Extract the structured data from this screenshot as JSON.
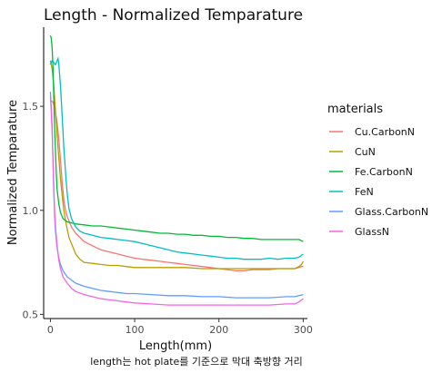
{
  "chart_data": {
    "type": "line",
    "title": "Length - Normalized Temparature",
    "xlabel": "Length(mm)",
    "ylabel": "Normalized Temparature",
    "caption": "length는 hot plate를 기준으로 막대 축방향 거리",
    "xlim": [
      -8,
      305
    ],
    "ylim": [
      0.48,
      1.88
    ],
    "xticks": [
      0,
      100,
      200,
      300
    ],
    "yticks": [
      0.5,
      1.0,
      1.5
    ],
    "ytick_labels": [
      "0.5",
      "1.0",
      "1.5"
    ],
    "grid": false,
    "legend": {
      "title": "materials",
      "position": "right"
    },
    "series": [
      {
        "name": "Cu.CarbonN",
        "color": "#F8766D",
        "points": [
          [
            0,
            1.53
          ],
          [
            3,
            1.52
          ],
          [
            5,
            1.5
          ],
          [
            8,
            1.42
          ],
          [
            10,
            1.34
          ],
          [
            12,
            1.24
          ],
          [
            14,
            1.13
          ],
          [
            16,
            1.05
          ],
          [
            18,
            1.0
          ],
          [
            20,
            0.97
          ],
          [
            22,
            0.95
          ],
          [
            25,
            0.92
          ],
          [
            30,
            0.89
          ],
          [
            35,
            0.87
          ],
          [
            40,
            0.85
          ],
          [
            50,
            0.83
          ],
          [
            60,
            0.81
          ],
          [
            70,
            0.8
          ],
          [
            80,
            0.79
          ],
          [
            90,
            0.78
          ],
          [
            100,
            0.77
          ],
          [
            110,
            0.765
          ],
          [
            120,
            0.76
          ],
          [
            130,
            0.755
          ],
          [
            140,
            0.75
          ],
          [
            150,
            0.745
          ],
          [
            160,
            0.74
          ],
          [
            170,
            0.735
          ],
          [
            180,
            0.73
          ],
          [
            190,
            0.725
          ],
          [
            200,
            0.72
          ],
          [
            210,
            0.715
          ],
          [
            220,
            0.71
          ],
          [
            230,
            0.71
          ],
          [
            240,
            0.715
          ],
          [
            250,
            0.715
          ],
          [
            260,
            0.715
          ],
          [
            270,
            0.72
          ],
          [
            280,
            0.72
          ],
          [
            290,
            0.72
          ],
          [
            295,
            0.725
          ],
          [
            298,
            0.73
          ],
          [
            300,
            0.73
          ]
        ]
      },
      {
        "name": "CuN",
        "color": "#B79F00",
        "points": [
          [
            0,
            1.72
          ],
          [
            2,
            1.68
          ],
          [
            4,
            1.6
          ],
          [
            6,
            1.48
          ],
          [
            8,
            1.36
          ],
          [
            10,
            1.25
          ],
          [
            12,
            1.15
          ],
          [
            14,
            1.07
          ],
          [
            16,
            1.0
          ],
          [
            18,
            0.95
          ],
          [
            20,
            0.91
          ],
          [
            22,
            0.87
          ],
          [
            25,
            0.84
          ],
          [
            28,
            0.81
          ],
          [
            30,
            0.79
          ],
          [
            35,
            0.765
          ],
          [
            40,
            0.75
          ],
          [
            50,
            0.745
          ],
          [
            60,
            0.74
          ],
          [
            70,
            0.735
          ],
          [
            80,
            0.735
          ],
          [
            90,
            0.73
          ],
          [
            100,
            0.725
          ],
          [
            120,
            0.725
          ],
          [
            140,
            0.725
          ],
          [
            160,
            0.725
          ],
          [
            180,
            0.72
          ],
          [
            200,
            0.72
          ],
          [
            220,
            0.72
          ],
          [
            240,
            0.72
          ],
          [
            260,
            0.72
          ],
          [
            280,
            0.72
          ],
          [
            290,
            0.72
          ],
          [
            295,
            0.73
          ],
          [
            298,
            0.74
          ],
          [
            300,
            0.755
          ]
        ]
      },
      {
        "name": "Fe.CarbonN",
        "color": "#00BA38",
        "points": [
          [
            0,
            1.84
          ],
          [
            1,
            1.83
          ],
          [
            2,
            1.78
          ],
          [
            3,
            1.7
          ],
          [
            4,
            1.55
          ],
          [
            5,
            1.4
          ],
          [
            6,
            1.28
          ],
          [
            7,
            1.18
          ],
          [
            8,
            1.1
          ],
          [
            10,
            1.03
          ],
          [
            12,
            0.99
          ],
          [
            15,
            0.96
          ],
          [
            20,
            0.945
          ],
          [
            30,
            0.935
          ],
          [
            40,
            0.93
          ],
          [
            50,
            0.925
          ],
          [
            60,
            0.925
          ],
          [
            70,
            0.92
          ],
          [
            80,
            0.915
          ],
          [
            90,
            0.91
          ],
          [
            100,
            0.905
          ],
          [
            110,
            0.9
          ],
          [
            120,
            0.895
          ],
          [
            130,
            0.89
          ],
          [
            140,
            0.89
          ],
          [
            150,
            0.885
          ],
          [
            160,
            0.885
          ],
          [
            170,
            0.88
          ],
          [
            180,
            0.88
          ],
          [
            190,
            0.875
          ],
          [
            200,
            0.875
          ],
          [
            210,
            0.87
          ],
          [
            220,
            0.87
          ],
          [
            230,
            0.865
          ],
          [
            240,
            0.865
          ],
          [
            250,
            0.86
          ],
          [
            260,
            0.86
          ],
          [
            270,
            0.86
          ],
          [
            280,
            0.86
          ],
          [
            290,
            0.86
          ],
          [
            295,
            0.86
          ],
          [
            300,
            0.85
          ]
        ]
      },
      {
        "name": "FeN",
        "color": "#00BFC4",
        "points": [
          [
            0,
            1.7
          ],
          [
            2,
            1.72
          ],
          [
            4,
            1.71
          ],
          [
            6,
            1.7
          ],
          [
            8,
            1.72
          ],
          [
            9,
            1.73
          ],
          [
            10,
            1.7
          ],
          [
            12,
            1.6
          ],
          [
            14,
            1.45
          ],
          [
            16,
            1.3
          ],
          [
            18,
            1.18
          ],
          [
            20,
            1.08
          ],
          [
            22,
            1.01
          ],
          [
            25,
            0.96
          ],
          [
            30,
            0.92
          ],
          [
            35,
            0.9
          ],
          [
            40,
            0.89
          ],
          [
            50,
            0.88
          ],
          [
            60,
            0.87
          ],
          [
            70,
            0.865
          ],
          [
            80,
            0.86
          ],
          [
            90,
            0.855
          ],
          [
            100,
            0.85
          ],
          [
            110,
            0.84
          ],
          [
            120,
            0.83
          ],
          [
            130,
            0.82
          ],
          [
            140,
            0.81
          ],
          [
            150,
            0.8
          ],
          [
            160,
            0.795
          ],
          [
            170,
            0.79
          ],
          [
            180,
            0.785
          ],
          [
            190,
            0.78
          ],
          [
            200,
            0.775
          ],
          [
            210,
            0.77
          ],
          [
            220,
            0.77
          ],
          [
            230,
            0.765
          ],
          [
            240,
            0.765
          ],
          [
            250,
            0.765
          ],
          [
            260,
            0.77
          ],
          [
            270,
            0.765
          ],
          [
            280,
            0.77
          ],
          [
            290,
            0.77
          ],
          [
            295,
            0.775
          ],
          [
            300,
            0.79
          ]
        ]
      },
      {
        "name": "Glass.CarbonN",
        "color": "#619CFF",
        "points": [
          [
            0,
            1.57
          ],
          [
            1,
            1.5
          ],
          [
            2,
            1.4
          ],
          [
            3,
            1.25
          ],
          [
            4,
            1.1
          ],
          [
            5,
            0.98
          ],
          [
            6,
            0.9
          ],
          [
            8,
            0.82
          ],
          [
            10,
            0.77
          ],
          [
            12,
            0.74
          ],
          [
            15,
            0.71
          ],
          [
            20,
            0.68
          ],
          [
            25,
            0.665
          ],
          [
            30,
            0.65
          ],
          [
            40,
            0.635
          ],
          [
            50,
            0.625
          ],
          [
            60,
            0.615
          ],
          [
            70,
            0.61
          ],
          [
            80,
            0.605
          ],
          [
            90,
            0.6
          ],
          [
            100,
            0.6
          ],
          [
            120,
            0.595
          ],
          [
            140,
            0.59
          ],
          [
            160,
            0.59
          ],
          [
            180,
            0.585
          ],
          [
            200,
            0.585
          ],
          [
            220,
            0.58
          ],
          [
            240,
            0.58
          ],
          [
            260,
            0.58
          ],
          [
            280,
            0.585
          ],
          [
            290,
            0.585
          ],
          [
            295,
            0.59
          ],
          [
            300,
            0.595
          ]
        ]
      },
      {
        "name": "GlassN",
        "color": "#F564E3",
        "points": [
          [
            0,
            1.55
          ],
          [
            1,
            1.48
          ],
          [
            2,
            1.38
          ],
          [
            3,
            1.25
          ],
          [
            4,
            1.12
          ],
          [
            5,
            1.0
          ],
          [
            6,
            0.92
          ],
          [
            8,
            0.83
          ],
          [
            10,
            0.76
          ],
          [
            12,
            0.72
          ],
          [
            15,
            0.68
          ],
          [
            20,
            0.65
          ],
          [
            25,
            0.625
          ],
          [
            30,
            0.61
          ],
          [
            40,
            0.595
          ],
          [
            50,
            0.585
          ],
          [
            60,
            0.575
          ],
          [
            70,
            0.57
          ],
          [
            80,
            0.565
          ],
          [
            90,
            0.56
          ],
          [
            100,
            0.555
          ],
          [
            120,
            0.55
          ],
          [
            140,
            0.545
          ],
          [
            160,
            0.545
          ],
          [
            180,
            0.545
          ],
          [
            200,
            0.545
          ],
          [
            220,
            0.545
          ],
          [
            240,
            0.545
          ],
          [
            260,
            0.545
          ],
          [
            280,
            0.55
          ],
          [
            290,
            0.55
          ],
          [
            295,
            0.56
          ],
          [
            300,
            0.575
          ]
        ]
      }
    ]
  }
}
